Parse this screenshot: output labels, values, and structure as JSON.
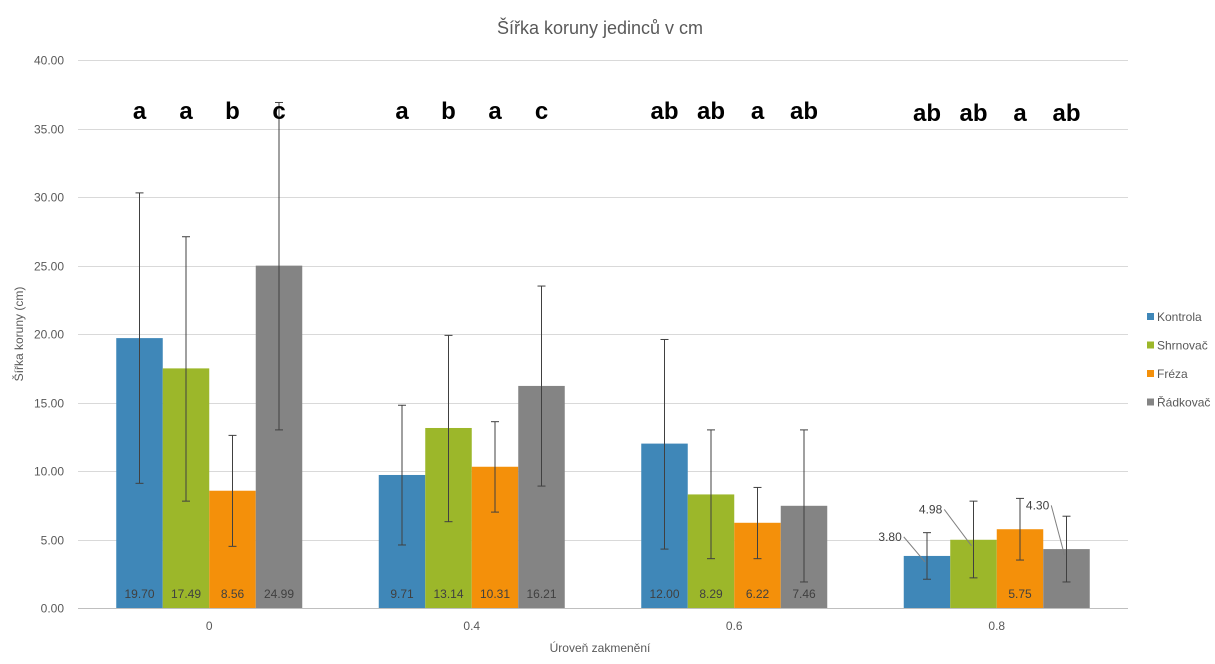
{
  "chart_data": {
    "type": "bar",
    "title": "Šířka koruny jedinců v cm",
    "xlabel": "Úroveň zakmenění",
    "ylabel": "Šířka koruny (cm)",
    "ylim": [
      0,
      40
    ],
    "ytick_step": 5,
    "ytick_labels": [
      "0.00",
      "5.00",
      "10.00",
      "15.00",
      "20.00",
      "25.00",
      "30.00",
      "35.00",
      "40.00"
    ],
    "categories": [
      "0",
      "0.4",
      "0.6",
      "0.8"
    ],
    "grid": true,
    "legend_position": "right",
    "series": [
      {
        "name": "Kontrola",
        "color": "#3f87b8",
        "values": [
          19.7,
          9.71,
          12.0,
          3.8
        ],
        "value_labels": [
          "19.70",
          "9.71",
          "12.00",
          "3.80"
        ],
        "error_low": [
          9.1,
          4.6,
          4.3,
          2.1
        ],
        "error_high": [
          30.3,
          14.8,
          19.6,
          5.5
        ],
        "significance": [
          "a",
          "a",
          "ab",
          "ab"
        ]
      },
      {
        "name": "Shrnovač",
        "color": "#9cb72a",
        "values": [
          17.49,
          13.14,
          8.29,
          4.98
        ],
        "value_labels": [
          "17.49",
          "13.14",
          "8.29",
          "4.98"
        ],
        "error_low": [
          7.8,
          6.3,
          3.6,
          2.2
        ],
        "error_high": [
          27.1,
          19.9,
          13.0,
          7.8
        ],
        "significance": [
          "a",
          "b",
          "ab",
          "ab"
        ]
      },
      {
        "name": "Fréza",
        "color": "#f4900a",
        "values": [
          8.56,
          10.31,
          6.22,
          5.75
        ],
        "value_labels": [
          "8.56",
          "10.31",
          "6.22",
          "5.75"
        ],
        "error_low": [
          4.5,
          7.0,
          3.6,
          3.5
        ],
        "error_high": [
          12.6,
          13.6,
          8.8,
          8.0
        ],
        "significance": [
          "b",
          "a",
          "a",
          "a"
        ]
      },
      {
        "name": "Řádkovač",
        "color": "#848484",
        "values": [
          24.99,
          16.21,
          7.46,
          4.3
        ],
        "value_labels": [
          "24.99",
          "16.21",
          "7.46",
          "4.30"
        ],
        "error_low": [
          13.0,
          8.9,
          1.9,
          1.9
        ],
        "error_high": [
          36.9,
          23.5,
          13.0,
          6.7
        ],
        "significance": [
          "c",
          "c",
          "ab",
          "ab"
        ]
      }
    ]
  }
}
